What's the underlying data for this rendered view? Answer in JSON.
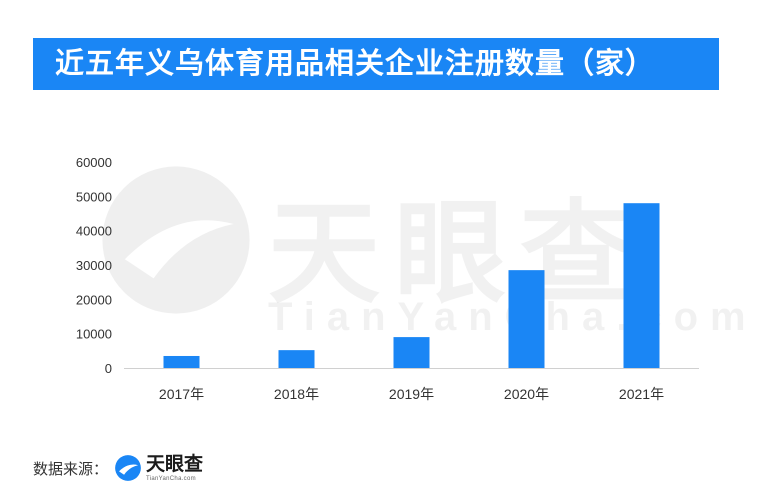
{
  "title": "近五年义乌体育用品相关企业注册数量（家）",
  "watermark": {
    "name": "天眼查",
    "domain": "TianYanCha.com"
  },
  "colors": {
    "banner": "#1a86f5",
    "bar": "#1a86f5",
    "axis": "#d0d0d0",
    "tick_text": "#333333"
  },
  "chart_data": {
    "type": "bar",
    "categories": [
      "2017年",
      "2018年",
      "2019年",
      "2020年",
      "2021年"
    ],
    "values": [
      3500,
      5200,
      9000,
      28500,
      48000
    ],
    "ylim": [
      0,
      60000
    ],
    "yticks": [
      "0",
      "10000",
      "20000",
      "30000",
      "40000",
      "50000",
      "60000"
    ],
    "title": "",
    "xlabel": "",
    "ylabel": "",
    "grid": false,
    "legend": "none"
  },
  "footer": {
    "source_label": "数据来源：",
    "logo_name": "天眼查",
    "logo_domain": "TianYanCha.com"
  }
}
